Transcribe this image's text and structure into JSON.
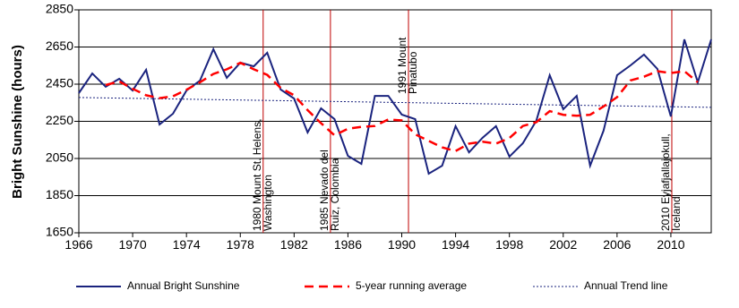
{
  "chart_data": {
    "type": "line",
    "y_label": "Bright Sunshine (hours)",
    "x": [
      1966,
      1967,
      1968,
      1969,
      1970,
      1971,
      1972,
      1973,
      1974,
      1975,
      1976,
      1977,
      1978,
      1979,
      1980,
      1981,
      1982,
      1983,
      1984,
      1985,
      1986,
      1987,
      1988,
      1989,
      1990,
      1991,
      1992,
      1993,
      1994,
      1995,
      1996,
      1997,
      1998,
      1999,
      2000,
      2001,
      2002,
      2003,
      2004,
      2005,
      2006,
      2007,
      2008,
      2009,
      2010,
      2011,
      2012,
      2013
    ],
    "series": [
      {
        "name": "Annual Bright Sunshine",
        "color": "#1a237e",
        "style": "solid",
        "values": [
          2402,
          2508,
          2436,
          2479,
          2416,
          2527,
          2233,
          2291,
          2416,
          2469,
          2638,
          2484,
          2566,
          2546,
          2619,
          2421,
          2373,
          2190,
          2320,
          2262,
          2064,
          2021,
          2387,
          2387,
          2286,
          2262,
          1968,
          2011,
          2224,
          2083,
          2161,
          2224,
          2060,
          2132,
          2253,
          2498,
          2315,
          2387,
          2011,
          2200,
          2498,
          2551,
          2609,
          2532,
          2276,
          2691,
          2460,
          2691
        ]
      },
      {
        "name": "5-year running average",
        "color": "#ff0000",
        "style": "dashed",
        "values": [
          null,
          null,
          2445,
          2465,
          2425,
          2390,
          2375,
          2385,
          2420,
          2460,
          2505,
          2530,
          2565,
          2530,
          2500,
          2430,
          2390,
          2310,
          2240,
          2175,
          2210,
          2220,
          2225,
          2260,
          2255,
          2180,
          2145,
          2110,
          2090,
          2130,
          2140,
          2130,
          2160,
          2225,
          2245,
          2305,
          2285,
          2280,
          2285,
          2330,
          2380,
          2470,
          2490,
          2520,
          2510,
          2520,
          2460,
          null
        ]
      }
    ],
    "trend": {
      "name": "Annual Trend line",
      "color": "#1a237e",
      "x": [
        1966,
        2013
      ],
      "values": [
        2378,
        2325
      ]
    },
    "annotations": [
      {
        "x": 1979.7,
        "lines": [
          "1980 Mount St. Helens,",
          "Washington"
        ]
      },
      {
        "x": 1984.7,
        "lines": [
          "1985 Nevado del",
          "Ruiz, Colombia"
        ]
      },
      {
        "x": 1990.5,
        "lines": [
          "1991 Mount",
          "Pinatubo"
        ]
      },
      {
        "x": 2010.07,
        "lines": [
          "2010 Eyjafjallajokull,",
          "Iceland"
        ]
      }
    ],
    "annotation_color": "#c00000",
    "xlim": [
      1966,
      2013
    ],
    "xticks": [
      1966,
      1970,
      1974,
      1978,
      1982,
      1986,
      1990,
      1994,
      1998,
      2002,
      2006,
      2010
    ],
    "ylim": [
      1650,
      2850
    ],
    "yticks": [
      1650,
      1850,
      2050,
      2250,
      2450,
      2650,
      2850
    ],
    "grid": true
  }
}
